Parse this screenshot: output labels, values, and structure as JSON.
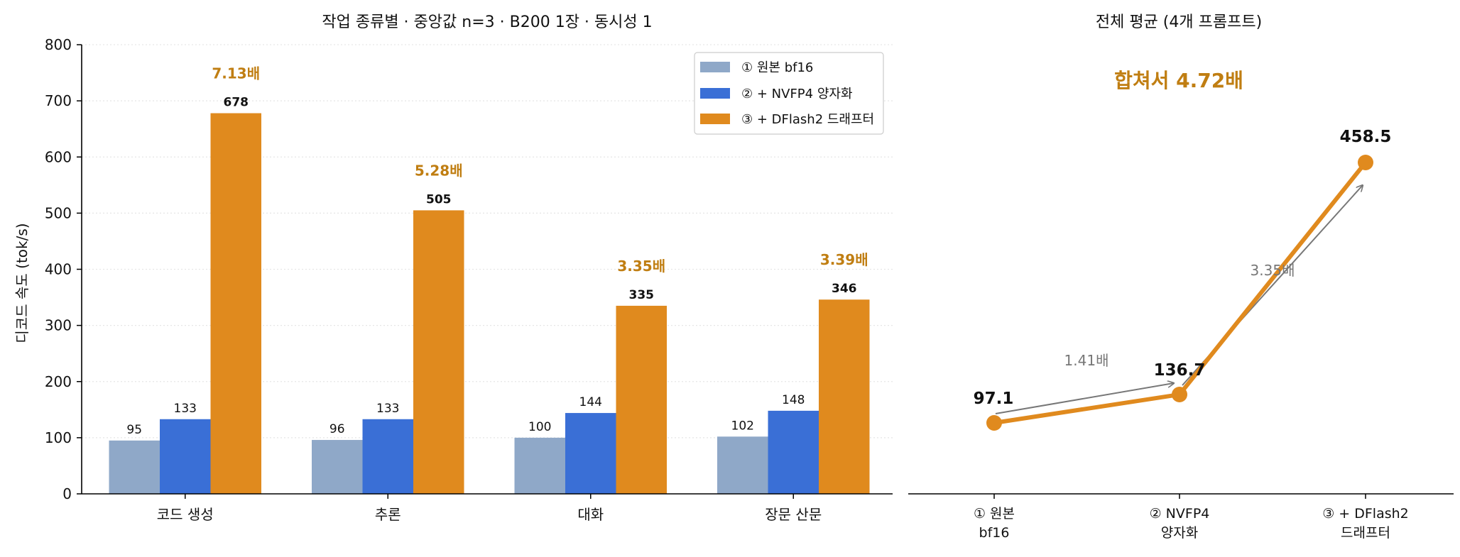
{
  "colors": {
    "bf16": "#8fa8c8",
    "nvfp4": "#3a6fd6",
    "dflash": "#e08a1e",
    "speedup_text": "#c07e12",
    "arrow": "#777777",
    "axis": "#000000",
    "grid": "#e6e6e6"
  },
  "chart_data": [
    {
      "type": "bar",
      "title": "작업 종류별 · 중앙값 n=3 · B200 1장 · 동시성 1",
      "xlabel": "",
      "ylabel": "디코드 속도 (tok/s)",
      "ylim": [
        0,
        800
      ],
      "yticks": [
        "0",
        "100",
        "200",
        "300",
        "400",
        "500",
        "600",
        "700",
        "800"
      ],
      "grid": "horizontal dotted",
      "legend_position": "top-right",
      "categories": [
        "코드 생성",
        "추론",
        "대화",
        "장문 산문"
      ],
      "series": [
        {
          "name": "① 원본 bf16",
          "values": [
            95,
            96,
            100,
            102
          ],
          "labels": [
            "95",
            "96",
            "100",
            "102"
          ],
          "color": "#8fa8c8"
        },
        {
          "name": "② + NVFP4 양자화",
          "values": [
            133,
            133,
            144,
            148
          ],
          "labels": [
            "133",
            "133",
            "144",
            "148"
          ],
          "color": "#3a6fd6"
        },
        {
          "name": "③ + DFlash2 드래프터",
          "values": [
            678,
            505,
            335,
            346
          ],
          "labels": [
            "678",
            "505",
            "335",
            "346"
          ],
          "color": "#e08a1e"
        }
      ],
      "speedups": [
        "7.13배",
        "5.28배",
        "3.35배",
        "3.39배"
      ]
    },
    {
      "type": "line",
      "title": "전체 평균 (4개 프롬프트)",
      "headline": "합쳐서 4.72배",
      "categories": [
        [
          "① 원본",
          "bf16"
        ],
        [
          "② NVFP4",
          "양자화"
        ],
        [
          "③ + DFlash2",
          "드래프터"
        ]
      ],
      "values": [
        97.1,
        136.7,
        458.5
      ],
      "labels": [
        "97.1",
        "136.7",
        "458.5"
      ],
      "step_speedups": [
        "1.41배",
        "3.35배"
      ],
      "color": "#e08a1e"
    }
  ]
}
